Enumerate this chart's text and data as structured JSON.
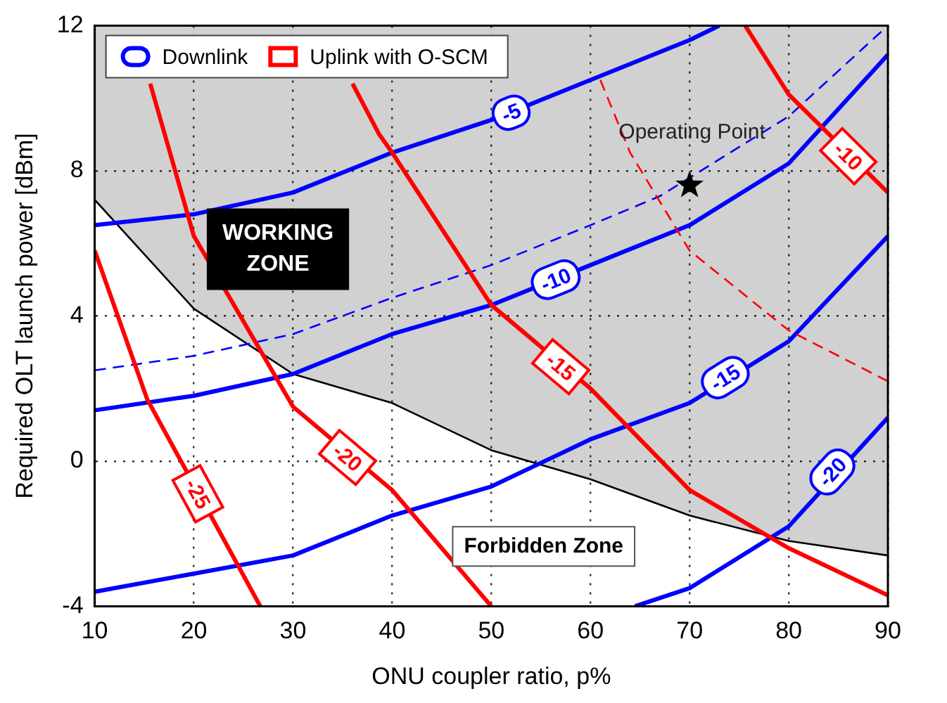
{
  "chart_data": {
    "type": "line",
    "xlabel": "ONU coupler ratio, p%",
    "ylabel": "Required OLT launch power [dBm]",
    "xlim": [
      10,
      90
    ],
    "xticks": [
      10,
      20,
      30,
      40,
      50,
      60,
      70,
      80,
      90
    ],
    "ylim": [
      -4,
      12
    ],
    "yticks": [
      -4,
      0,
      4,
      8,
      12
    ],
    "grid": true,
    "legend": "top left",
    "marker": "none",
    "series": [
      {
        "color": "#000000",
        "x": [
          10,
          20,
          30,
          40,
          50,
          60,
          70,
          80,
          90
        ],
        "values": [
          7.2,
          4.2,
          2.4,
          1.6,
          0.3,
          -0.5,
          -1.5,
          -2.2,
          -2.6
        ],
        "lower": [
          7.2,
          4.2,
          2.4,
          1.6,
          0.3,
          -0.5,
          -1.5,
          -2.2,
          -2.6
        ],
        "upper": [
          12,
          12,
          12,
          12,
          12,
          12,
          12,
          12,
          12
        ]
      },
      {
        "name": "Downlink",
        "color": "#0000ff",
        "x": [
          10,
          20,
          30,
          40,
          50,
          60,
          70,
          73
        ],
        "values": [
          6.5,
          6.8,
          7.4,
          8.5,
          9.4,
          10.5,
          11.6,
          12
        ]
      },
      {
        "color": "#0000ff",
        "x": [
          10,
          20,
          30,
          40,
          50,
          60,
          70,
          80,
          90
        ],
        "values": [
          1.4,
          1.8,
          2.4,
          3.5,
          4.3,
          5.4,
          6.5,
          8.2,
          11.2
        ]
      },
      {
        "color": "#0000ff",
        "x": [
          10,
          20,
          30,
          40,
          50,
          60,
          70,
          80,
          90
        ],
        "values": [
          -3.6,
          -3.1,
          -2.6,
          -1.5,
          -0.7,
          0.6,
          1.6,
          3.3,
          6.2
        ]
      },
      {
        "color": "#0000ff",
        "x": [
          64.5,
          70,
          80,
          90
        ],
        "values": [
          -4,
          -3.5,
          -1.8,
          1.2
        ]
      },
      {
        "color": "#0000ff",
        "line_style": "dashed",
        "x": [
          10,
          20,
          30,
          40,
          50,
          60,
          67,
          80,
          90
        ],
        "values": [
          2.5,
          2.9,
          3.5,
          4.5,
          5.4,
          6.5,
          7.3,
          9.5,
          12
        ]
      },
      {
        "name": "Uplink with O-SCM",
        "color": "#ff0000",
        "x": [
          75.6,
          80,
          90
        ],
        "values": [
          12,
          10.1,
          7.4
        ]
      },
      {
        "color": "#ff0000",
        "x": [
          36,
          38.7,
          40,
          50,
          60,
          70,
          80,
          90
        ],
        "values": [
          10.4,
          9.0,
          8.5,
          4.3,
          2.0,
          -0.8,
          -2.4,
          -3.7
        ]
      },
      {
        "color": "#ff0000",
        "x": [
          15.6,
          20,
          30,
          40,
          50
        ],
        "values": [
          10.4,
          6.2,
          1.5,
          -0.8,
          -4
        ]
      },
      {
        "color": "#ff0000",
        "x": [
          10,
          15.3,
          26.7
        ],
        "values": [
          5.8,
          1.7,
          -4
        ]
      },
      {
        "color": "#ff0000",
        "line_style": "dashed",
        "x": [
          61,
          64,
          70,
          80,
          90
        ],
        "values": [
          10.5,
          8.5,
          5.8,
          3.6,
          2.2
        ]
      },
      {
        "type": "scatter",
        "marker": "star",
        "color": "#000000",
        "x": [
          70
        ],
        "values": [
          7.6
        ]
      }
    ],
    "annotations": [
      "WORKING ZONE",
      "Forbidden Zone",
      "Operating Point",
      {
        "text": "-5",
        "x": 52,
        "y": 9.6
      },
      {
        "text": "-10",
        "x": 56.5,
        "y": 5.0
      },
      {
        "text": "-15",
        "x": 73.6,
        "y": 2.3
      },
      {
        "text": "-20",
        "x": 84.4,
        "y": -0.3
      },
      {
        "text": "-10",
        "x": 86,
        "y": 8.4
      },
      {
        "text": "-15",
        "x": 57,
        "y": 2.6
      },
      {
        "text": "-20",
        "x": 35.5,
        "y": 0.1
      },
      {
        "text": "-25",
        "x": 20.4,
        "y": -0.9
      }
    ]
  }
}
